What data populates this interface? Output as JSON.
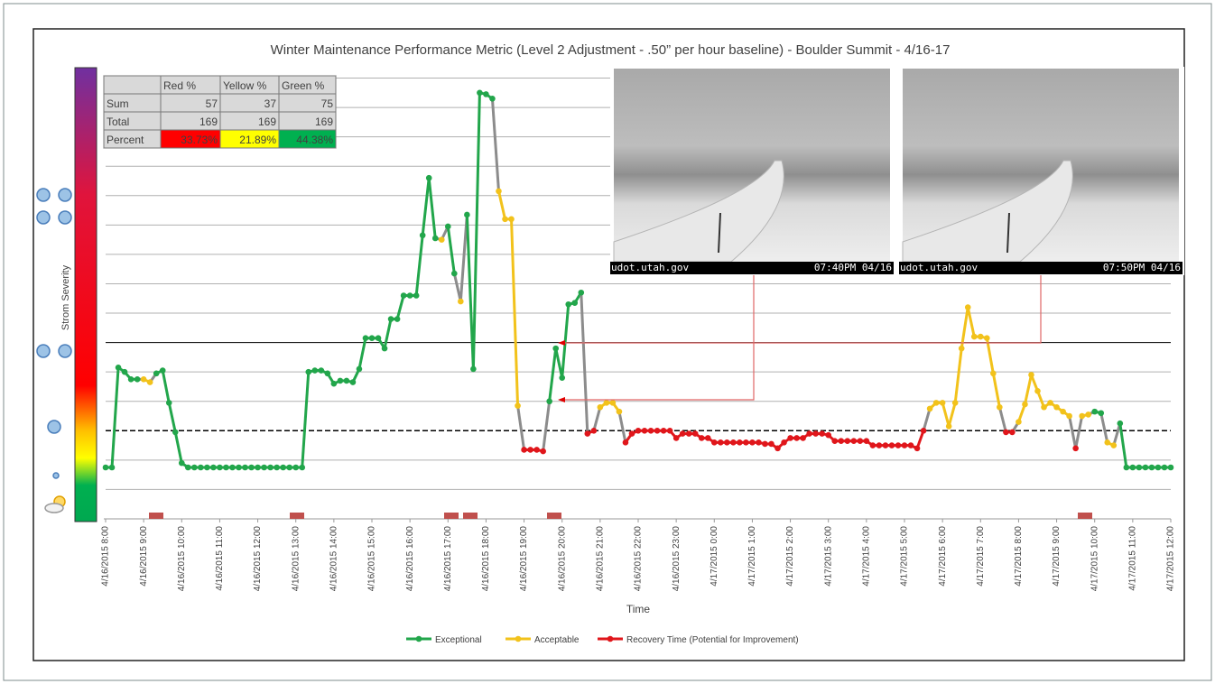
{
  "chart_data": {
    "type": "line",
    "title": "Winter Maintenance Performance Metric (Level 2 Adjustment - .50” per hour baseline) - Boulder Summit - 4/16-17",
    "x_label": "Time",
    "y_label": "Strom Severity",
    "xtick_labels": [
      "4/16/2015 8:00",
      "4/16/2015 9:00",
      "4/16/2015 10:00",
      "4/16/2015 11:00",
      "4/16/2015 12:00",
      "4/16/2015 13:00",
      "4/16/2015 14:00",
      "4/16/2015 15:00",
      "4/16/2015 16:00",
      "4/16/2015 17:00",
      "4/16/2015 18:00",
      "4/16/2015 19:00",
      "4/16/2015 20:00",
      "4/16/2015 21:00",
      "4/16/2015 22:00",
      "4/16/2015 23:00",
      "4/17/2015 0:00",
      "4/17/2015 1:00",
      "4/17/2015 2:00",
      "4/17/2015 3:00",
      "4/17/2015 4:00",
      "4/17/2015 5:00",
      "4/17/2015 6:00",
      "4/17/2015 7:00",
      "4/17/2015 8:00",
      "4/17/2015 9:00",
      "4/17/2015 10:00",
      "4/17/2015 11:00",
      "4/17/2015 12:00"
    ],
    "ylim": [
      0,
      15.2
    ],
    "gridlines": [
      1,
      2,
      4,
      5,
      6,
      7,
      8,
      9,
      10,
      11,
      12,
      13,
      14,
      15
    ],
    "emphasized_gridline": 6,
    "baseline": 3,
    "transition_color": "#8c8c8c",
    "series": [
      {
        "name": "Exceptional",
        "color": "#22a64b"
      },
      {
        "name": "Acceptable",
        "color": "#f2c21b"
      },
      {
        "name": "Recovery Time (Potential for Improvement)",
        "color": "#e0161b"
      }
    ],
    "values": [
      1.75,
      1.75,
      5.15,
      5,
      4.75,
      4.75,
      4.75,
      4.65,
      4.95,
      5.05,
      3.95,
      2.95,
      1.9,
      1.75,
      1.75,
      1.75,
      1.75,
      1.75,
      1.75,
      1.75,
      1.75,
      1.75,
      1.75,
      1.75,
      1.75,
      1.75,
      1.75,
      1.75,
      1.75,
      1.75,
      1.75,
      1.75,
      5,
      5.05,
      5.05,
      4.95,
      4.6,
      4.7,
      4.7,
      4.65,
      5.1,
      6.15,
      6.15,
      6.15,
      5.8,
      6.8,
      6.8,
      7.6,
      7.6,
      7.6,
      9.65,
      11.6,
      9.55,
      9.5,
      9.95,
      8.35,
      7.4,
      10.35,
      5.1,
      14.5,
      14.45,
      14.3,
      11.15,
      10.2,
      10.2,
      3.85,
      2.35,
      2.35,
      2.35,
      2.3,
      4,
      5.8,
      4.8,
      7.3,
      7.35,
      7.7,
      2.9,
      3,
      3.8,
      3.95,
      3.95,
      3.65,
      2.6,
      2.9,
      3,
      3,
      3,
      3,
      3,
      3,
      2.75,
      2.9,
      2.9,
      2.9,
      2.75,
      2.75,
      2.6,
      2.6,
      2.6,
      2.6,
      2.6,
      2.6,
      2.6,
      2.6,
      2.55,
      2.55,
      2.4,
      2.6,
      2.75,
      2.75,
      2.75,
      2.9,
      2.9,
      2.9,
      2.85,
      2.65,
      2.65,
      2.65,
      2.65,
      2.65,
      2.65,
      2.5,
      2.5,
      2.5,
      2.5,
      2.5,
      2.5,
      2.5,
      2.4,
      3,
      3.75,
      3.95,
      3.95,
      3.15,
      3.95,
      5.8,
      7.2,
      6.2,
      6.2,
      6.15,
      4.95,
      3.8,
      2.95,
      2.95,
      3.3,
      3.9,
      4.9,
      4.35,
      3.8,
      3.95,
      3.8,
      3.65,
      3.5,
      2.4,
      3.5,
      3.55,
      3.65,
      3.6,
      2.6,
      2.5,
      3.25,
      1.75,
      1.75,
      1.75,
      1.75,
      1.75,
      1.75,
      1.75,
      1.75
    ],
    "status": [
      0,
      0,
      0,
      0,
      0,
      0,
      1,
      1,
      0,
      0,
      0,
      0,
      0,
      0,
      0,
      0,
      0,
      0,
      0,
      0,
      0,
      0,
      0,
      0,
      0,
      0,
      0,
      0,
      0,
      0,
      0,
      0,
      0,
      0,
      0,
      0,
      0,
      0,
      0,
      0,
      0,
      0,
      0,
      0,
      0,
      0,
      0,
      0,
      0,
      0,
      0,
      0,
      0,
      1,
      0,
      0,
      1,
      0,
      0,
      0,
      0,
      0,
      1,
      1,
      1,
      1,
      2,
      2,
      2,
      2,
      0,
      0,
      0,
      0,
      0,
      0,
      2,
      2,
      1,
      1,
      1,
      1,
      2,
      2,
      2,
      2,
      2,
      2,
      2,
      2,
      2,
      2,
      2,
      2,
      2,
      2,
      2,
      2,
      2,
      2,
      2,
      2,
      2,
      2,
      2,
      2,
      2,
      2,
      2,
      2,
      2,
      2,
      2,
      2,
      2,
      2,
      2,
      2,
      2,
      2,
      2,
      2,
      2,
      2,
      2,
      2,
      2,
      2,
      2,
      2,
      1,
      1,
      1,
      1,
      1,
      1,
      1,
      1,
      1,
      1,
      1,
      1,
      2,
      2,
      1,
      1,
      1,
      1,
      1,
      1,
      1,
      1,
      1,
      2,
      1,
      1,
      0,
      0,
      1,
      1,
      0,
      0,
      0,
      0,
      0,
      0,
      0,
      0,
      0
    ]
  },
  "table": {
    "header": [
      "Red %",
      "Yellow %",
      "Green %"
    ],
    "rows": [
      [
        "Sum",
        "57",
        "37",
        "75"
      ],
      [
        "Total",
        "169",
        "169",
        "169"
      ],
      [
        "Percent",
        "33.73%",
        "21.89%",
        "44.38%"
      ]
    ],
    "colors": [
      "#ff0000",
      "#ffff00",
      "#00b050"
    ]
  },
  "webcams": [
    {
      "site": "udot.utah.gov",
      "time": "07:40PM 04/16"
    },
    {
      "site": "udot.utah.gov",
      "time": "07:50PM 04/16"
    }
  ]
}
